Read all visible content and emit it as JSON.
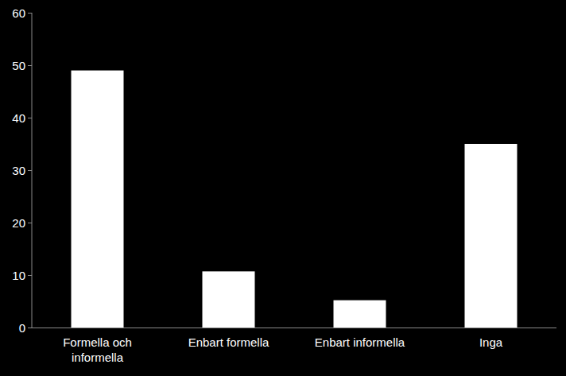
{
  "chart_data": {
    "type": "bar",
    "categories": [
      "Formella och informella",
      "Enbart formella",
      "Enbart informella",
      "Inga"
    ],
    "values": [
      49,
      10.7,
      5.2,
      35
    ],
    "color": "#ffffff",
    "ylim": [
      0,
      60
    ],
    "yticks": [
      0,
      10,
      20,
      30,
      40,
      50,
      60
    ],
    "grid": false
  }
}
